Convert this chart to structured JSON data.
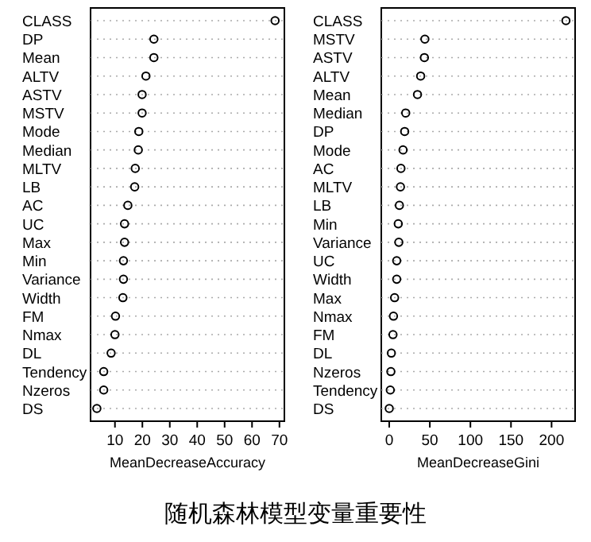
{
  "chart_data": [
    {
      "type": "scatter",
      "orientation": "horizontal",
      "xlabel": "MeanDecreaseAccuracy",
      "categories": [
        "CLASS",
        "DP",
        "Mean",
        "ALTV",
        "ASTV",
        "MSTV",
        "Mode",
        "Median",
        "MLTV",
        "LB",
        "AC",
        "UC",
        "Max",
        "Min",
        "Variance",
        "Width",
        "FM",
        "Nmax",
        "DL",
        "Tendency",
        "Nzeros",
        "DS"
      ],
      "series": [
        {
          "color": "#000000",
          "values": [
            68.4,
            24.2,
            24.2,
            21.3,
            19.9,
            19.9,
            18.7,
            18.5,
            17.4,
            17.2,
            14.7,
            13.5,
            13.5,
            13.1,
            13.1,
            12.9,
            10.2,
            10,
            8.6,
            5.9,
            5.9,
            3.4
          ]
        }
      ],
      "xlim": [
        1.1,
        71.8
      ],
      "xticks": [
        10,
        20,
        30,
        40,
        50,
        60,
        70
      ],
      "marker": "circle",
      "grid": "y",
      "annotations": [
        "随机森林模型变量重要性"
      ]
    },
    {
      "type": "scatter",
      "orientation": "horizontal",
      "xlabel": "MeanDecreaseGini",
      "categories": [
        "CLASS",
        "MSTV",
        "ASTV",
        "ALTV",
        "Mean",
        "Median",
        "DP",
        "Mode",
        "AC",
        "MLTV",
        "LB",
        "Min",
        "Variance",
        "UC",
        "Width",
        "Max",
        "Nmax",
        "FM",
        "DL",
        "Nzeros",
        "Tendency",
        "DS"
      ],
      "series": [
        {
          "color": "#000000",
          "values": [
            217.7,
            43.9,
            43.3,
            38.7,
            34.8,
            20.3,
            19,
            17,
            14.4,
            13.8,
            12.5,
            11.1,
            11.8,
            9.2,
            9.2,
            6.6,
            5.2,
            4.6,
            2.6,
            2,
            1.3,
            0
          ]
        }
      ],
      "xlim": [
        -9.8,
        229
      ],
      "xticks": [
        0,
        50,
        100,
        150,
        200
      ],
      "marker": "circle",
      "grid": "y"
    }
  ]
}
